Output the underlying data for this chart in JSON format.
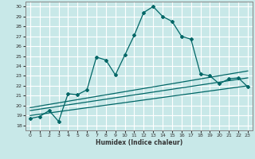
{
  "title": "",
  "xlabel": "Humidex (Indice chaleur)",
  "bg_color": "#c8e8e8",
  "grid_color": "#ffffff",
  "line_color": "#006666",
  "xlim": [
    -0.5,
    23.5
  ],
  "ylim": [
    17.5,
    30.5
  ],
  "xticks": [
    0,
    1,
    2,
    3,
    4,
    5,
    6,
    7,
    8,
    9,
    10,
    11,
    12,
    13,
    14,
    15,
    16,
    17,
    18,
    19,
    20,
    21,
    22,
    23
  ],
  "yticks": [
    18,
    19,
    20,
    21,
    22,
    23,
    24,
    25,
    26,
    27,
    28,
    29,
    30
  ],
  "line1_x": [
    0,
    1,
    2,
    3,
    4,
    5,
    6,
    7,
    8,
    9,
    10,
    11,
    12,
    13,
    14,
    15,
    16,
    17,
    18,
    19,
    20,
    21,
    22,
    23
  ],
  "line1_y": [
    18.7,
    18.9,
    19.5,
    18.4,
    21.2,
    21.1,
    21.6,
    24.9,
    24.6,
    23.1,
    25.1,
    27.1,
    29.4,
    30.0,
    29.0,
    28.5,
    27.0,
    26.7,
    23.2,
    23.0,
    22.2,
    22.7,
    22.8,
    21.9
  ],
  "line2_x": [
    0,
    23
  ],
  "line2_y": [
    19.0,
    22.0
  ],
  "line3_x": [
    0,
    23
  ],
  "line3_y": [
    19.5,
    22.8
  ],
  "line4_x": [
    0,
    23
  ],
  "line4_y": [
    19.8,
    23.5
  ]
}
